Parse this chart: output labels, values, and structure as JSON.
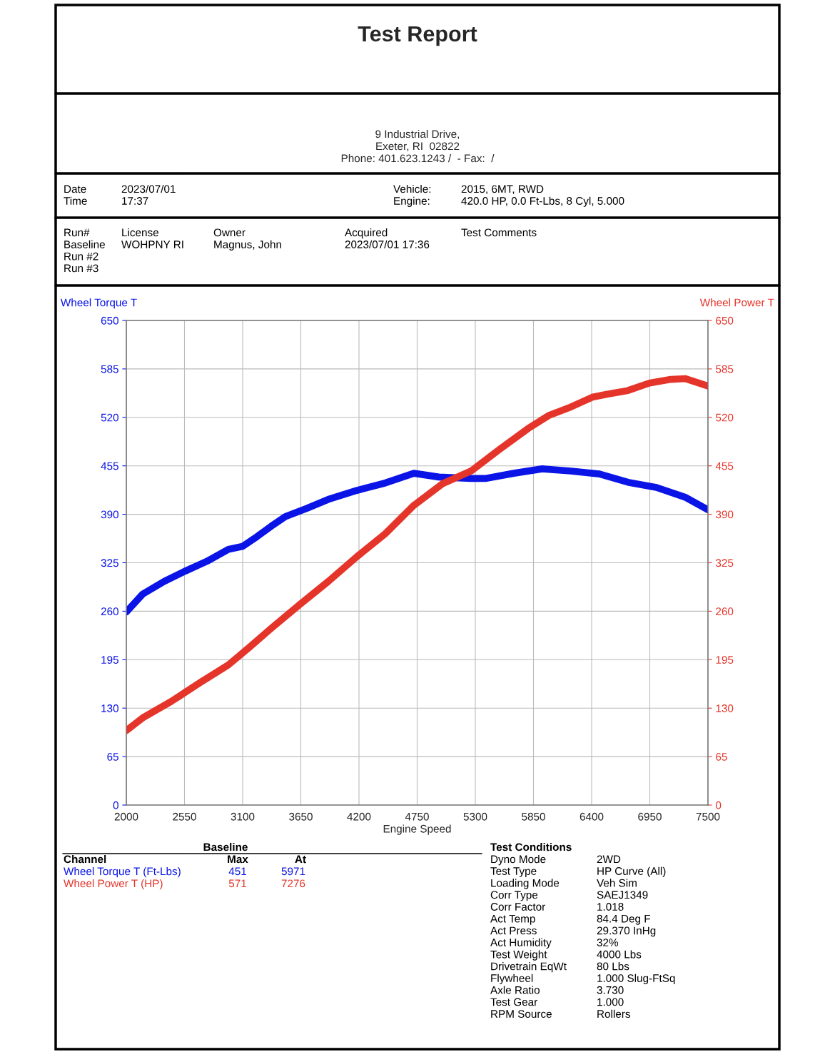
{
  "chart_data": {
    "type": "line",
    "title": "Test Report",
    "subtitle": "9 Industrial Drive,\nExeter, RI  02822\nPhone: 401.623.1243 /  - Fax:  /",
    "xlabel": "Engine Speed",
    "ylabel": "Wheel Torque T",
    "y2label": "Wheel Power T",
    "xlim": [
      2000,
      7500
    ],
    "xticks": [
      2000,
      2550,
      3100,
      3650,
      4200,
      4750,
      5300,
      5850,
      6400,
      6950,
      7500
    ],
    "ylim": [
      0,
      650
    ],
    "yticks": [
      0,
      65,
      130,
      195,
      260,
      325,
      390,
      455,
      520,
      585,
      650
    ],
    "y2lim": [
      0,
      650
    ],
    "y2ticks": [
      0,
      65,
      130,
      195,
      260,
      325,
      390,
      455,
      520,
      585,
      650
    ],
    "grid": true,
    "marker": "none",
    "line_style": "solid",
    "series": [
      {
        "name": "Wheel Torque T (Ft-Lbs)",
        "color": "#0a14e6",
        "x": [
          2000,
          2155,
          2358,
          2560,
          2762,
          2965,
          3100,
          3235,
          3370,
          3505,
          3707,
          3910,
          4179,
          4449,
          4719,
          4955,
          5259,
          5394,
          5664,
          5934,
          6204,
          6474,
          6743,
          7013,
          7283,
          7500
        ],
        "values": [
          259,
          283,
          300,
          314,
          327,
          343,
          347,
          360,
          374,
          387,
          398,
          410,
          422,
          432,
          445,
          440,
          438,
          438,
          445,
          451,
          448,
          444,
          433,
          426,
          413,
          396
        ]
      },
      {
        "name": "Wheel Power T (HP)",
        "color": "#e5352b",
        "axis": "y2",
        "x": [
          2000,
          2155,
          2425,
          2695,
          2965,
          3167,
          3370,
          3640,
          3910,
          4179,
          4449,
          4719,
          4989,
          5259,
          5529,
          5799,
          6001,
          6204,
          6406,
          6541,
          6743,
          6946,
          7148,
          7283,
          7500
        ],
        "values": [
          100,
          117,
          139,
          164,
          188,
          212,
          237,
          269,
          300,
          333,
          364,
          402,
          431,
          448,
          477,
          505,
          523,
          534,
          547,
          551,
          556,
          566,
          571,
          572,
          562
        ]
      }
    ],
    "annotations": [
      "Date\nTime",
      "2023/07/01\n17:37",
      "Vehicle:\nEngine:",
      "2015, 6MT, RWD\n420.0 HP, 0.0 Ft-Lbs, 8 Cyl, 5.000",
      "Run#\nBaseline\nRun #2\nRun #3",
      "License\nWOHPNY RI",
      "Owner\nMagnus, John",
      "Acquired\n2023/07/01 17:36",
      "Test Comments",
      "Baseline",
      "Channel",
      "Max",
      "At",
      "451",
      "5971",
      "571",
      "7276",
      "Test Conditions",
      "Dyno Mode\nTest Type\nLoading Mode\nCorr Type\nCorr Factor\nAct Temp\nAct Press\nAct Humidity\nTest Weight\nDrivetrain EqWt\nFlywheel\nAxle Ratio\nTest Gear\nRPM Source",
      "2WD\nHP Curve (All)\nVeh Sim\nSAEJ1349\n1.018\n84.4 Deg F\n29.370 InHg\n32%\n4000 Lbs\n80 Lbs\n1.000 Slug-FtSq\n3.730\n1.000\nRollers"
    ]
  }
}
